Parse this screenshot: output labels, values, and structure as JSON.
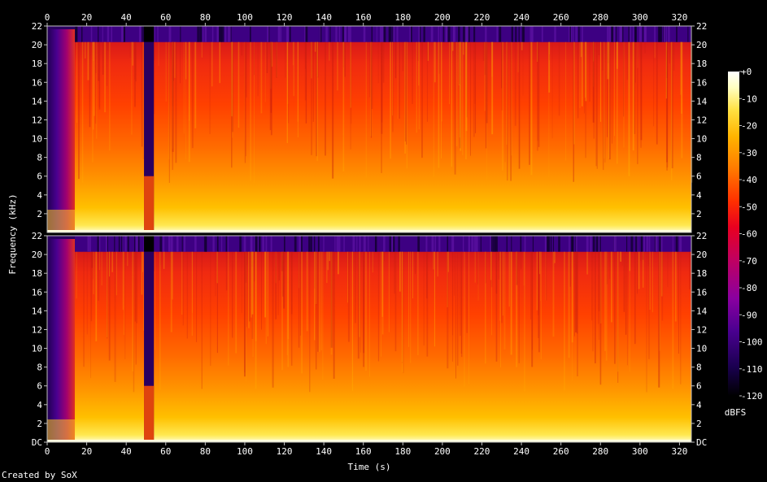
{
  "chart_data": {
    "type": "heatmap",
    "title": "",
    "xlabel": "Time (s)",
    "ylabel": "Frequency (kHz)",
    "x_ticks": [
      "0",
      "20",
      "40",
      "60",
      "80",
      "100",
      "120",
      "140",
      "160",
      "180",
      "200",
      "220",
      "240",
      "260",
      "280",
      "300",
      "320"
    ],
    "x_range": [
      0,
      326
    ],
    "channels": [
      {
        "y_ticks": [
          "2",
          "4",
          "6",
          "8",
          "10",
          "12",
          "14",
          "16",
          "18",
          "20",
          "22"
        ],
        "y_range": [
          0,
          22
        ]
      },
      {
        "y_ticks": [
          "DC",
          "2",
          "4",
          "6",
          "8",
          "10",
          "12",
          "14",
          "16",
          "18",
          "20",
          "22"
        ],
        "y_range": [
          0,
          22
        ]
      }
    ],
    "colorbar": {
      "label": "dBFS",
      "range": [
        -120,
        0
      ],
      "ticks": [
        "+0",
        "-10",
        "-20",
        "-30",
        "-40",
        "-50",
        "-60",
        "-70",
        "-80",
        "-90",
        "-100",
        "-110",
        "-120"
      ],
      "colors": [
        "#000000",
        "#1a0050",
        "#4a0090",
        "#8a00a0",
        "#c00060",
        "#e80020",
        "#ff3000",
        "#ff7a00",
        "#ffb400",
        "#ffe040",
        "#ffffc0",
        "#ffffff"
      ]
    },
    "features": {
      "silence_intro_s": [
        0,
        14
      ],
      "low_energy_gap_s": [
        49,
        54
      ],
      "lowpass_cutoff_khz": 20.3
    }
  },
  "credit": "Created by SoX"
}
